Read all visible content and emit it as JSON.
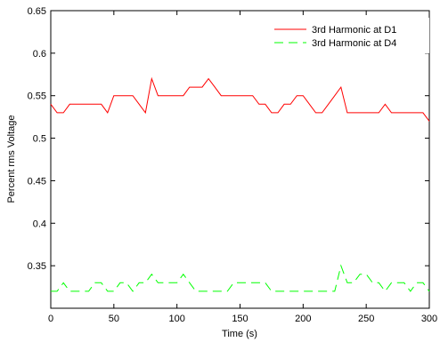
{
  "chart_data": {
    "type": "line",
    "xlabel": "Time (s)",
    "ylabel": "Percent rms Voltage",
    "xlim": [
      0,
      300
    ],
    "ylim": [
      0.3,
      0.65
    ],
    "xticks": [
      "0",
      "50",
      "100",
      "150",
      "200",
      "250",
      "300"
    ],
    "yticks": [
      "0.35",
      "0.4",
      "0.45",
      "0.5",
      "0.55",
      "0.6",
      "0.65"
    ],
    "grid": false,
    "legend_position": "top-right",
    "series": [
      {
        "name": "3rd Harmonic at D1",
        "color": "#ff0000",
        "dash": "solid",
        "x": [
          0,
          5,
          10,
          15,
          20,
          25,
          30,
          35,
          40,
          45,
          50,
          55,
          60,
          65,
          70,
          75,
          80,
          85,
          90,
          95,
          100,
          105,
          110,
          115,
          120,
          125,
          130,
          135,
          140,
          145,
          150,
          155,
          160,
          165,
          170,
          175,
          180,
          185,
          190,
          195,
          200,
          205,
          210,
          215,
          220,
          225,
          230,
          235,
          240,
          245,
          250,
          255,
          260,
          265,
          270,
          275,
          280,
          285,
          290,
          295,
          300
        ],
        "y": [
          0.54,
          0.53,
          0.53,
          0.54,
          0.54,
          0.54,
          0.54,
          0.54,
          0.54,
          0.53,
          0.55,
          0.55,
          0.55,
          0.55,
          0.54,
          0.53,
          0.57,
          0.55,
          0.55,
          0.55,
          0.55,
          0.55,
          0.56,
          0.56,
          0.56,
          0.57,
          0.56,
          0.55,
          0.55,
          0.55,
          0.55,
          0.55,
          0.55,
          0.54,
          0.54,
          0.53,
          0.53,
          0.54,
          0.54,
          0.55,
          0.55,
          0.54,
          0.53,
          0.53,
          0.54,
          0.55,
          0.56,
          0.53,
          0.53,
          0.53,
          0.53,
          0.53,
          0.53,
          0.54,
          0.53,
          0.53,
          0.53,
          0.53,
          0.53,
          0.53,
          0.52
        ]
      },
      {
        "name": "3rd Harmonic at D4",
        "color": "#00ff00",
        "dash": "dashed",
        "x": [
          0,
          5,
          10,
          15,
          20,
          25,
          30,
          35,
          40,
          45,
          50,
          55,
          60,
          65,
          70,
          75,
          80,
          85,
          90,
          95,
          100,
          105,
          110,
          115,
          120,
          125,
          130,
          135,
          140,
          145,
          150,
          155,
          160,
          165,
          170,
          175,
          180,
          185,
          190,
          195,
          200,
          205,
          210,
          215,
          220,
          225,
          230,
          235,
          240,
          245,
          250,
          255,
          260,
          265,
          270,
          275,
          280,
          285,
          290,
          295,
          300
        ],
        "y": [
          0.32,
          0.32,
          0.33,
          0.32,
          0.32,
          0.32,
          0.32,
          0.33,
          0.33,
          0.32,
          0.32,
          0.33,
          0.33,
          0.32,
          0.33,
          0.33,
          0.34,
          0.33,
          0.33,
          0.33,
          0.33,
          0.34,
          0.33,
          0.32,
          0.32,
          0.32,
          0.32,
          0.32,
          0.32,
          0.33,
          0.33,
          0.33,
          0.33,
          0.33,
          0.33,
          0.32,
          0.32,
          0.32,
          0.32,
          0.32,
          0.32,
          0.32,
          0.32,
          0.32,
          0.32,
          0.32,
          0.35,
          0.33,
          0.33,
          0.34,
          0.34,
          0.33,
          0.33,
          0.32,
          0.33,
          0.33,
          0.33,
          0.32,
          0.33,
          0.33,
          0.32
        ]
      }
    ]
  }
}
